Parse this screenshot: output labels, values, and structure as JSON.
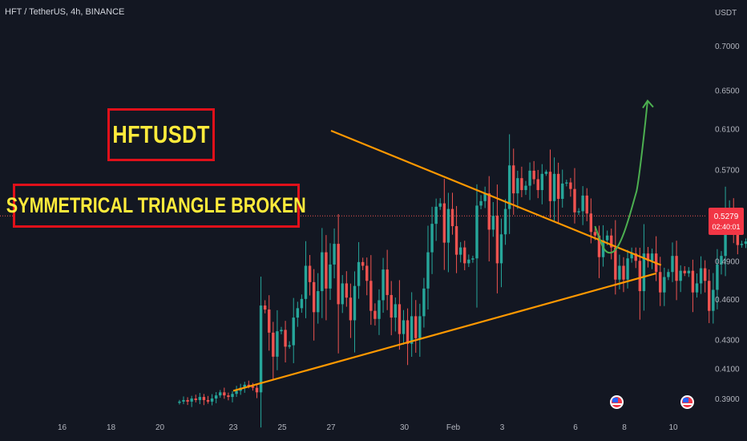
{
  "header": {
    "symbol": "HFT / TetherUS, 4h, BINANCE"
  },
  "axis": {
    "unit": "USDT",
    "price_ticks": [
      "0.7000",
      "0.6500",
      "0.6100",
      "0.5700",
      "0.4900",
      "0.4600",
      "0.4300",
      "0.4100",
      "0.3900"
    ],
    "date_ticks": [
      "16",
      "18",
      "20",
      "23",
      "25",
      "27",
      "30",
      "Feb",
      "3",
      "6",
      "8",
      "10"
    ]
  },
  "annotations": {
    "title_box": "HFTUSDT",
    "pattern_box": "SYMMETRICAL TRIANGLE BROKEN"
  },
  "last_price": {
    "value": "0.5279",
    "countdown": "02:40:01",
    "color": "#f23645"
  },
  "colors": {
    "bull": "#26a69a",
    "bear": "#ef5350",
    "trendline": "#ff9800",
    "projection": "#4caf50",
    "label_text": "#ffeb3b",
    "label_border": "#e0101a"
  },
  "chart_data": {
    "type": "candlestick",
    "title": "HFT / TetherUS, 4h, BINANCE",
    "y_unit": "USDT",
    "y_scale": "log",
    "y_ticks": [
      0.39,
      0.41,
      0.43,
      0.46,
      0.49,
      0.57,
      0.61,
      0.65,
      0.7
    ],
    "ylim": [
      0.385,
      0.73
    ],
    "x_ticks": [
      "16",
      "18",
      "20",
      "23",
      "25",
      "27",
      "30",
      "Feb",
      "3",
      "6",
      "8",
      "10"
    ],
    "legend": "none",
    "grid": false,
    "trendlines": [
      {
        "from": [
          "Jan 27",
          0.608
        ],
        "to": [
          "Feb 9",
          0.489
        ]
      },
      {
        "from": [
          "Jan 23",
          0.395
        ],
        "to": [
          "Feb 9",
          0.478
        ]
      }
    ],
    "projection": {
      "points": [
        [
          "Feb 6.8",
          0.519
        ],
        [
          "Feb 7.4",
          0.497
        ],
        [
          "Feb 8.4",
          0.55
        ],
        [
          "Feb 8.8",
          0.639
        ]
      ]
    },
    "closes": [
      0.388,
      0.389,
      0.388,
      0.39,
      0.389,
      0.391,
      0.389,
      0.388,
      0.39,
      0.392,
      0.394,
      0.392,
      0.391,
      0.393,
      0.395,
      0.397,
      0.399,
      0.398,
      0.397,
      0.394,
      0.455,
      0.452,
      0.435,
      0.418,
      0.436,
      0.437,
      0.425,
      0.426,
      0.446,
      0.453,
      0.46,
      0.486,
      0.473,
      0.45,
      0.466,
      0.497,
      0.468,
      0.487,
      0.504,
      0.456,
      0.472,
      0.461,
      0.444,
      0.47,
      0.489,
      0.486,
      0.474,
      0.451,
      0.445,
      0.459,
      0.483,
      0.463,
      0.446,
      0.456,
      0.434,
      0.444,
      0.427,
      0.447,
      0.431,
      0.447,
      0.468,
      0.497,
      0.521,
      0.536,
      0.539,
      0.505,
      0.534,
      0.519,
      0.495,
      0.501,
      0.488,
      0.491,
      0.492,
      0.537,
      0.541,
      0.548,
      0.516,
      0.528,
      0.488,
      0.512,
      0.534,
      0.574,
      0.548,
      0.562,
      0.551,
      0.555,
      0.569,
      0.561,
      0.551,
      0.566,
      0.568,
      0.541,
      0.566,
      0.543,
      0.557,
      0.558,
      0.552,
      0.531,
      0.532,
      0.546,
      0.53,
      0.514,
      0.511,
      0.493,
      0.507,
      0.511,
      0.501,
      0.475,
      0.486,
      0.475,
      0.492,
      0.496,
      0.49,
      0.466,
      0.496,
      0.49,
      0.496,
      0.481,
      0.465,
      0.477,
      0.481,
      0.494,
      0.474,
      0.482,
      0.48,
      0.482,
      0.465,
      0.472,
      0.484,
      0.474,
      0.451,
      0.467,
      0.487,
      0.494,
      0.527,
      0.535,
      0.519,
      0.503,
      0.504,
      0.506,
      0.511,
      0.496,
      0.504,
      0.501,
      0.489,
      0.483,
      0.486,
      0.485,
      0.503,
      0.515,
      0.503,
      0.495,
      0.484,
      0.491,
      0.503,
      0.496,
      0.507,
      0.495,
      0.505,
      0.498,
      0.502,
      0.496,
      0.494,
      0.508,
      0.504,
      0.494,
      0.471,
      0.483,
      0.48,
      0.499,
      0.555,
      0.527
    ]
  }
}
